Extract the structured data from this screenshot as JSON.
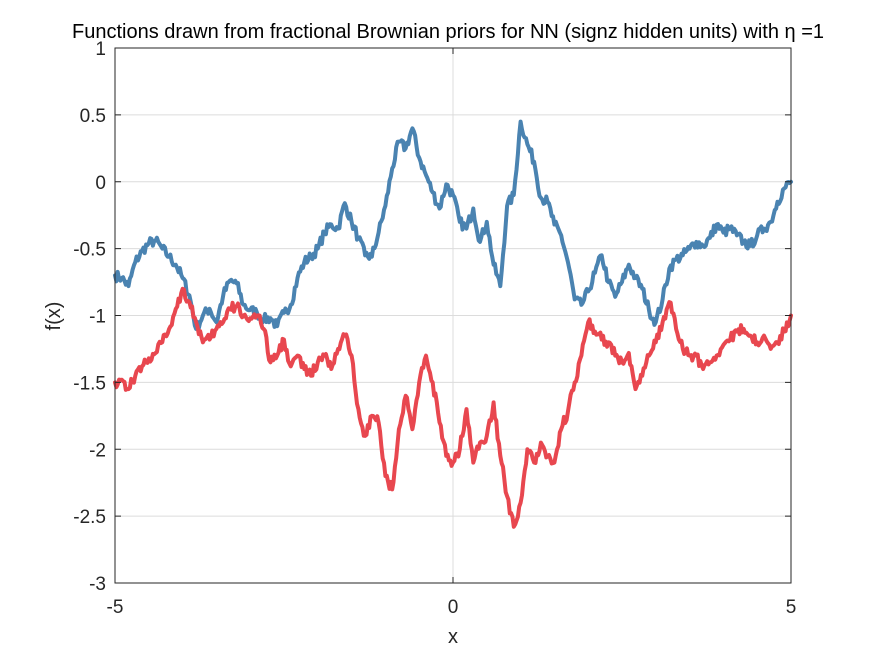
{
  "chart_data": {
    "type": "line",
    "title": "Functions drawn from fractional Brownian priors for NN (signz hidden units) with η =1",
    "xlabel": "x",
    "ylabel": "f(x)",
    "xlim": [
      -5,
      5
    ],
    "ylim": [
      -3,
      1
    ],
    "xticks": [
      "-5",
      "0",
      "5"
    ],
    "yticks": [
      "1",
      "0.5",
      "0",
      "-0.5",
      "-1",
      "-1.5",
      "-2",
      "-2.5",
      "-3"
    ],
    "grid": true,
    "legend": "none",
    "series": [
      {
        "color": "#4a83b1",
        "x": [
          -5,
          -4.9,
          -4.8,
          -4.7,
          -4.6,
          -4.5,
          -4.4,
          -4.3,
          -4.2,
          -4.1,
          -4.0,
          -3.9,
          -3.8,
          -3.7,
          -3.6,
          -3.5,
          -3.4,
          -3.3,
          -3.2,
          -3.1,
          -3.0,
          -2.9,
          -2.8,
          -2.7,
          -2.6,
          -2.5,
          -2.4,
          -2.3,
          -2.2,
          -2.1,
          -2.0,
          -1.9,
          -1.8,
          -1.7,
          -1.6,
          -1.5,
          -1.4,
          -1.3,
          -1.2,
          -1.1,
          -1.0,
          -0.9,
          -0.8,
          -0.7,
          -0.6,
          -0.5,
          -0.4,
          -0.3,
          -0.2,
          -0.1,
          0.0,
          0.1,
          0.2,
          0.3,
          0.4,
          0.5,
          0.6,
          0.7,
          0.8,
          0.9,
          1.0,
          1.1,
          1.2,
          1.3,
          1.4,
          1.5,
          1.6,
          1.7,
          1.8,
          1.9,
          2.0,
          2.1,
          2.2,
          2.3,
          2.4,
          2.5,
          2.6,
          2.7,
          2.8,
          2.9,
          3.0,
          3.1,
          3.2,
          3.3,
          3.4,
          3.5,
          3.6,
          3.7,
          3.8,
          3.9,
          4.0,
          4.1,
          4.2,
          4.3,
          4.4,
          4.5,
          4.6,
          4.7,
          4.8,
          4.9,
          5.0
        ],
        "values": [
          -0.7,
          -0.72,
          -0.78,
          -0.6,
          -0.52,
          -0.46,
          -0.44,
          -0.5,
          -0.56,
          -0.62,
          -0.72,
          -0.85,
          -1.1,
          -1.0,
          -0.95,
          -1.05,
          -0.85,
          -0.74,
          -0.76,
          -0.92,
          -0.96,
          -0.98,
          -1.03,
          -1.02,
          -1.08,
          -0.98,
          -0.92,
          -0.72,
          -0.6,
          -0.56,
          -0.5,
          -0.38,
          -0.32,
          -0.35,
          -0.16,
          -0.3,
          -0.42,
          -0.55,
          -0.56,
          -0.38,
          -0.18,
          0.1,
          0.3,
          0.25,
          0.4,
          0.18,
          0.05,
          -0.08,
          -0.2,
          -0.02,
          -0.1,
          -0.3,
          -0.35,
          -0.2,
          -0.45,
          -0.3,
          -0.62,
          -0.78,
          -0.18,
          -0.1,
          0.45,
          0.28,
          0.15,
          -0.12,
          -0.15,
          -0.32,
          -0.4,
          -0.6,
          -0.88,
          -0.92,
          -0.82,
          -0.68,
          -0.55,
          -0.75,
          -0.86,
          -0.75,
          -0.62,
          -0.72,
          -0.8,
          -0.96,
          -1.05,
          -0.88,
          -0.65,
          -0.58,
          -0.55,
          -0.5,
          -0.45,
          -0.48,
          -0.42,
          -0.32,
          -0.38,
          -0.35,
          -0.4,
          -0.45,
          -0.48,
          -0.4,
          -0.35,
          -0.3,
          -0.15,
          -0.05,
          0.0
        ]
      },
      {
        "color": "#e8474f",
        "x": [
          -5,
          -4.9,
          -4.8,
          -4.7,
          -4.6,
          -4.5,
          -4.4,
          -4.3,
          -4.2,
          -4.1,
          -4.0,
          -3.9,
          -3.8,
          -3.7,
          -3.6,
          -3.5,
          -3.4,
          -3.3,
          -3.2,
          -3.1,
          -3.0,
          -2.9,
          -2.8,
          -2.7,
          -2.6,
          -2.5,
          -2.4,
          -2.3,
          -2.2,
          -2.1,
          -2.0,
          -1.9,
          -1.8,
          -1.7,
          -1.6,
          -1.5,
          -1.4,
          -1.3,
          -1.2,
          -1.1,
          -1.0,
          -0.9,
          -0.8,
          -0.7,
          -0.6,
          -0.5,
          -0.4,
          -0.3,
          -0.2,
          -0.1,
          0.0,
          0.1,
          0.2,
          0.3,
          0.4,
          0.5,
          0.6,
          0.7,
          0.8,
          0.9,
          1.0,
          1.1,
          1.2,
          1.3,
          1.4,
          1.5,
          1.6,
          1.7,
          1.8,
          1.9,
          2.0,
          2.1,
          2.2,
          2.3,
          2.4,
          2.5,
          2.6,
          2.7,
          2.8,
          2.9,
          3.0,
          3.1,
          3.2,
          3.3,
          3.4,
          3.5,
          3.6,
          3.7,
          3.8,
          3.9,
          4.0,
          4.1,
          4.2,
          4.3,
          4.4,
          4.5,
          4.6,
          4.7,
          4.8,
          4.9,
          5.0
        ],
        "values": [
          -1.5,
          -1.48,
          -1.55,
          -1.45,
          -1.38,
          -1.32,
          -1.28,
          -1.2,
          -1.1,
          -0.95,
          -0.8,
          -0.9,
          -1.05,
          -1.2,
          -1.18,
          -1.1,
          -1.05,
          -0.95,
          -0.93,
          -1.0,
          -1.02,
          -1.0,
          -1.1,
          -1.35,
          -1.3,
          -1.18,
          -1.38,
          -1.3,
          -1.4,
          -1.45,
          -1.35,
          -1.3,
          -1.4,
          -1.25,
          -1.15,
          -1.3,
          -1.7,
          -1.9,
          -1.75,
          -1.8,
          -2.2,
          -2.3,
          -1.85,
          -1.6,
          -1.85,
          -1.5,
          -1.3,
          -1.5,
          -1.8,
          -2.05,
          -2.1,
          -2.0,
          -1.7,
          -2.1,
          -1.95,
          -1.9,
          -1.65,
          -2.05,
          -2.35,
          -2.58,
          -2.4,
          -2.0,
          -2.1,
          -1.95,
          -2.05,
          -2.1,
          -1.85,
          -1.72,
          -1.5,
          -1.3,
          -1.05,
          -1.12,
          -1.18,
          -1.2,
          -1.3,
          -1.35,
          -1.28,
          -1.55,
          -1.45,
          -1.3,
          -1.2,
          -1.05,
          -0.9,
          -1.1,
          -1.25,
          -1.3,
          -1.3,
          -1.4,
          -1.35,
          -1.3,
          -1.22,
          -1.18,
          -1.12,
          -1.1,
          -1.15,
          -1.2,
          -1.15,
          -1.25,
          -1.2,
          -1.12,
          -1.0
        ]
      }
    ]
  }
}
